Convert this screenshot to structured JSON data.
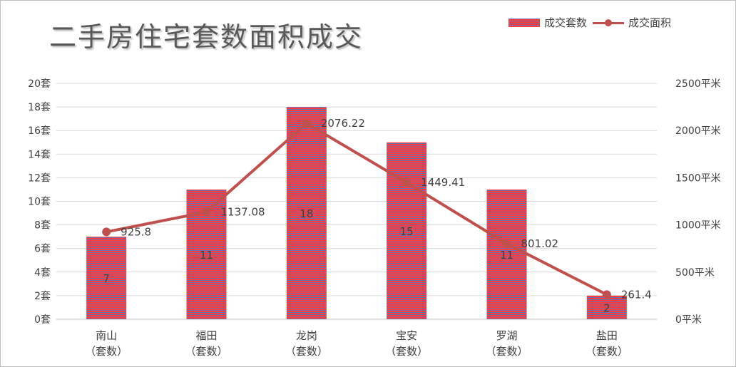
{
  "chart_data": {
    "type": "bar",
    "title": "二手房住宅套数面积成交",
    "categories": [
      "南山（套数）",
      "福田（套数）",
      "龙岗（套数）",
      "宝安（套数）",
      "罗湖（套数）",
      "盐田（套数）"
    ],
    "category_lines": [
      [
        "南山",
        "（套数）"
      ],
      [
        "福田",
        "（套数）"
      ],
      [
        "龙岗",
        "（套数）"
      ],
      [
        "宝安",
        "（套数）"
      ],
      [
        "罗湖",
        "（套数）"
      ],
      [
        "盐田",
        "（套数）"
      ]
    ],
    "series": [
      {
        "name": "成交套数",
        "type": "bar",
        "axis": "left",
        "values": [
          7,
          11,
          18,
          15,
          11,
          2
        ],
        "labels": [
          "7",
          "11",
          "18",
          "15",
          "11",
          "2"
        ]
      },
      {
        "name": "成交面积",
        "type": "line",
        "axis": "right",
        "values": [
          925.8,
          1137.08,
          2076.22,
          1449.41,
          801.02,
          261.4
        ],
        "labels": [
          "925.8",
          "1137.08",
          "2076.22",
          "1449.41",
          "801.02",
          "261.4"
        ]
      }
    ],
    "y_left": {
      "lim": [
        0,
        20
      ],
      "ticks": [
        "0套",
        "2套",
        "4套",
        "6套",
        "8套",
        "10套",
        "12套",
        "14套",
        "16套",
        "18套",
        "20套"
      ]
    },
    "y_right": {
      "lim": [
        0,
        2500
      ],
      "ticks": [
        "0平米",
        "500平米",
        "1000平米",
        "1500平米",
        "2000平米",
        "2500平米"
      ]
    },
    "grid": true,
    "legend_position": "top-right",
    "colors": {
      "bar": "#ff3b3b",
      "bar_stripe": "#6b6fb0",
      "line": "#c0504d",
      "grid": "#d9d9d9",
      "text": "#404040"
    }
  }
}
